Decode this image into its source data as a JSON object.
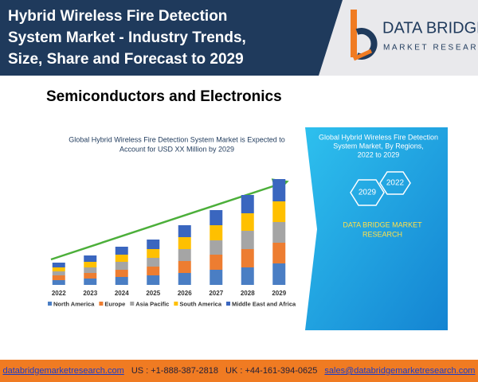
{
  "header": {
    "title_lines": [
      "Hybrid Wireless Fire Detection",
      "System Market - Industry Trends,",
      "Size, Share and Forecast to 2029"
    ],
    "logo_name": "DATA BRIDGE",
    "logo_tagline": "MARKET RESEARCH"
  },
  "category": "Semiconductors and Electronics",
  "chart_data": {
    "type": "stacked_bar",
    "title_lines": [
      "Global Hybrid Wireless Fire Detection System Market is Expected to",
      "Account for USD XX Million by 2029"
    ],
    "categories": [
      "2022",
      "2023",
      "2024",
      "2025",
      "2026",
      "2027",
      "2028",
      "2029"
    ],
    "series": [
      {
        "name": "North America",
        "color": "#4a7ec4",
        "values": [
          6,
          8,
          10,
          12,
          15,
          19,
          22,
          27
        ]
      },
      {
        "name": "Europe",
        "color": "#ed7d31",
        "values": [
          6,
          7,
          9,
          11,
          15,
          19,
          23,
          26
        ]
      },
      {
        "name": "Asia Pacific",
        "color": "#a5a5a5",
        "values": [
          5,
          7,
          10,
          11,
          15,
          18,
          23,
          26
        ]
      },
      {
        "name": "South America",
        "color": "#ffc000",
        "values": [
          5,
          7,
          9,
          11,
          15,
          19,
          22,
          26
        ]
      },
      {
        "name": "Middle East and Africa",
        "color": "#3a66bf",
        "values": [
          6,
          8,
          10,
          12,
          15,
          19,
          23,
          28
        ]
      }
    ],
    "trend_color": "#4caf3a"
  },
  "side_panel": {
    "title_lines": [
      "Global Hybrid Wireless Fire Detection",
      "System Market, By Regions,",
      "2022 to 2029"
    ],
    "hex_labels": [
      "2029",
      "2022"
    ],
    "brand_lines": [
      "DATA BRIDGE MARKET",
      "RESEARCH"
    ]
  },
  "footer": {
    "website": "databridgemarketresearch.com",
    "us_phone": "US : +1-888-387-2818",
    "uk_phone": "UK : +44-161-394-0625",
    "email": "sales@databridgemarketresearch.com"
  }
}
